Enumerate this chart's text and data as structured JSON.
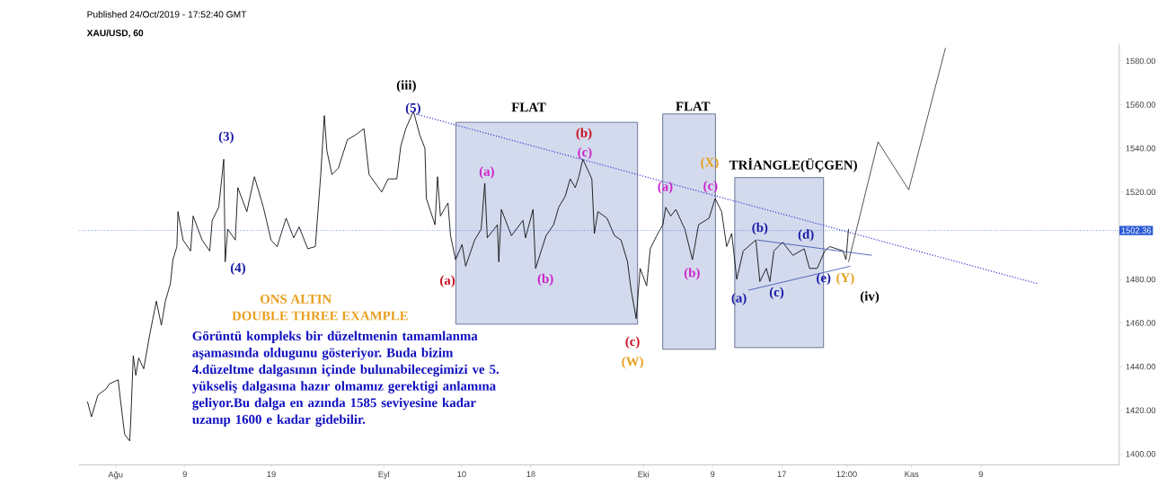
{
  "chart_data": {
    "type": "line",
    "title": "XAU/USD, 60",
    "subtitle": "Published 24/Oct/2019 - 17:52:40 GMT",
    "xlim": [
      "2019-07-27T18:00",
      "2019-11-25"
    ],
    "ylim": [
      1395,
      1588
    ],
    "xticks": [
      {
        "value": "2019-08-01",
        "label": "Ağu"
      },
      {
        "value": "2019-08-09",
        "label": "9"
      },
      {
        "value": "2019-08-19",
        "label": "19"
      },
      {
        "value": "2019-09-01",
        "label": "Eyl"
      },
      {
        "value": "2019-09-10",
        "label": "10"
      },
      {
        "value": "2019-09-18",
        "label": "18"
      },
      {
        "value": "2019-10-01",
        "label": "Eki"
      },
      {
        "value": "2019-10-09",
        "label": "9"
      },
      {
        "value": "2019-10-17",
        "label": "17"
      },
      {
        "value": "2019-10-24T12:00",
        "label": "12:00"
      },
      {
        "value": "2019-11-01",
        "label": "Kas"
      },
      {
        "value": "2019-11-09",
        "label": "9"
      }
    ],
    "yticks": [
      {
        "value": 1400,
        "label": "1400.00"
      },
      {
        "value": 1420,
        "label": "1420.00"
      },
      {
        "value": 1440,
        "label": "1440.00"
      },
      {
        "value": 1460,
        "label": "1460.00"
      },
      {
        "value": 1480,
        "label": "1480.00"
      },
      {
        "value": 1520,
        "label": "1520.00"
      },
      {
        "value": 1540,
        "label": "1540.00"
      },
      {
        "value": 1560,
        "label": "1560.00"
      },
      {
        "value": 1580,
        "label": "1580.00"
      }
    ],
    "series": [
      {
        "color": "#000000",
        "x": [
          "2019-07-28T18:00",
          "2019-07-29T05:00",
          "2019-07-29T23:00",
          "2019-07-30T23:00",
          "2019-07-31T06:00",
          "2019-08-01T07:00",
          "2019-08-01T14:00",
          "2019-08-02T01:00",
          "2019-08-02T15:00",
          "2019-08-02T18:00",
          "2019-08-03T01:00",
          "2019-08-03T08:00",
          "2019-08-03T16:00",
          "2019-08-04T06:00",
          "2019-08-04T23:00",
          "2019-08-05T17:00",
          "2019-08-06T07:00",
          "2019-08-06T18:00",
          "2019-08-07T08:00",
          "2019-08-07T15:00",
          "2019-08-08T02:00",
          "2019-08-08T05:00",
          "2019-08-08T19:00",
          "2019-08-09T16:00",
          "2019-08-09T23:00",
          "2019-08-11T00:00",
          "2019-08-11T21:00",
          "2019-08-12T04:00",
          "2019-08-12T22:00",
          "2019-08-13T12:00",
          "2019-08-13T16:00",
          "2019-08-13T23:00",
          "2019-08-14T20:00",
          "2019-08-15T03:00",
          "2019-08-16T04:00",
          "2019-08-17T01:00",
          "2019-08-18T02:00",
          "2019-08-18T23:00",
          "2019-08-19T16:00",
          "2019-08-20T17:00",
          "2019-08-21T14:00",
          "2019-08-22T05:00",
          "2019-08-23T05:00",
          "2019-08-24T02:00",
          "2019-08-24T17:00",
          "2019-08-25T03:00",
          "2019-08-25T10:00",
          "2019-08-26T00:00",
          "2019-08-26T18:00",
          "2019-08-27T19:00",
          "2019-08-28T16:00",
          "2019-08-29T17:00",
          "2019-08-30T07:00",
          "2019-08-31T18:00",
          "2019-09-01T12:00",
          "2019-09-02T12:00",
          "2019-09-02T23:00",
          "2019-09-03T13:00",
          "2019-09-04T10:00",
          "2019-09-05T04:00",
          "2019-09-05T18:00",
          "2019-09-05T22:00",
          "2019-09-06T22:00",
          "2019-09-07T05:00",
          "2019-09-07T13:00",
          "2019-09-08T10:00",
          "2019-09-08T17:00",
          "2019-09-09T07:00",
          "2019-09-10T01:00",
          "2019-09-10T11:00",
          "2019-09-11T12:00",
          "2019-09-12T06:00",
          "2019-09-12T16:00",
          "2019-09-12T23:00",
          "2019-09-14T03:00",
          "2019-09-14T07:00",
          "2019-09-14T14:00",
          "2019-09-15T18:00",
          "2019-09-17T02:00",
          "2019-09-17T09:00",
          "2019-09-18T06:00",
          "2019-09-18T13:00",
          "2019-09-19T18:00",
          "2019-09-20T15:00",
          "2019-09-21T05:00",
          "2019-09-21T23:00",
          "2019-09-22T13:00",
          "2019-09-23T03:00",
          "2019-09-23T13:00",
          "2019-09-24T00:00",
          "2019-09-24T14:00",
          "2019-09-25T01:00",
          "2019-09-25T08:00",
          "2019-09-25T18:00",
          "2019-09-26T19:00",
          "2019-09-27T16:00",
          "2019-09-28T10:00",
          "2019-09-29T04:00",
          "2019-09-29T14:00",
          "2019-09-30T04:00",
          "2019-09-30T15:00",
          "2019-10-01T09:00",
          "2019-10-01T19:00",
          "2019-10-02T13:00",
          "2019-10-03T06:00",
          "2019-10-03T14:00",
          "2019-10-04T04:00",
          "2019-10-04T18:00",
          "2019-10-05T19:00",
          "2019-10-06T16:00",
          "2019-10-07T09:00",
          "2019-10-08T14:00",
          "2019-10-09T07:00",
          "2019-10-10T01:00",
          "2019-10-10T15:00",
          "2019-10-11T05:00",
          "2019-10-11T19:00",
          "2019-10-12T13:00",
          "2019-10-13T03:00",
          "2019-10-14T00:00",
          "2019-10-14T11:00",
          "2019-10-15T05:00",
          "2019-10-15T15:00",
          "2019-10-16T02:00",
          "2019-10-17T02:00",
          "2019-10-18T07:00",
          "2019-10-19T14:00",
          "2019-10-20T05:00",
          "2019-10-21T02:00",
          "2019-10-21T23:00",
          "2019-10-22T13:00",
          "2019-10-24T02:00",
          "2019-10-24T10:00",
          "2019-10-24T17:00"
        ],
        "values": [
          1424,
          1417,
          1427,
          1430,
          1432,
          1434,
          1424,
          1409,
          1406,
          1415,
          1445,
          1436,
          1444,
          1439,
          1455,
          1470,
          1459,
          1470,
          1478,
          1489,
          1495,
          1511,
          1498,
          1493,
          1509,
          1498,
          1493,
          1507,
          1513,
          1535,
          1488,
          1503,
          1498,
          1522,
          1511,
          1527,
          1513,
          1498,
          1495,
          1508,
          1499,
          1504,
          1494,
          1495,
          1528,
          1555,
          1539,
          1528,
          1531,
          1544,
          1546,
          1549,
          1528,
          1520,
          1526,
          1526,
          1541,
          1549,
          1557,
          1546,
          1540,
          1517,
          1505,
          1527,
          1509,
          1515,
          1500,
          1489,
          1496,
          1486,
          1498,
          1503,
          1524,
          1499,
          1505,
          1488,
          1512,
          1500,
          1507,
          1499,
          1512,
          1485,
          1500,
          1505,
          1513,
          1518,
          1526,
          1522,
          1527,
          1535,
          1530,
          1526,
          1501,
          1511,
          1508,
          1500,
          1498,
          1488,
          1475,
          1462,
          1485,
          1477,
          1494,
          1500,
          1505,
          1513,
          1509,
          1512,
          1503,
          1489,
          1505,
          1508,
          1517,
          1511,
          1495,
          1501,
          1480,
          1493,
          1495,
          1498,
          1479,
          1485,
          1479,
          1493,
          1497,
          1491,
          1494,
          1485,
          1485,
          1493,
          1495,
          1493,
          1489,
          1503
        ]
      },
      {
        "color": "#3a3ad0",
        "line_style": "dotted",
        "x": [
          "2019-09-04T10:00",
          "2019-11-15T13:00"
        ],
        "values": [
          1556,
          1478
        ]
      },
      {
        "color": "#3a4fb0",
        "x": [
          "2019-10-14T04:00",
          "2019-10-27T10:00"
        ],
        "values": [
          1498,
          1491
        ]
      },
      {
        "color": "#3a4fb0",
        "x": [
          "2019-10-13T03:00",
          "2019-10-24T22:00"
        ],
        "values": [
          1475,
          1486
        ]
      },
      {
        "color": "#333333",
        "x": [
          "2019-10-24T17:00",
          "2019-10-28T03:00",
          "2019-10-31T16:00",
          "2019-11-04T22:00"
        ],
        "values": [
          1488,
          1543,
          1521,
          1586
        ]
      }
    ],
    "ref_lines": [
      {
        "axis": "y",
        "value": 1502.36,
        "label": "1502.36",
        "color": "#2a5ad6",
        "line_style": "dotted"
      }
    ],
    "annotations": [
      "(iii)",
      "(5)",
      "FLAT",
      "FLAT",
      "(3)",
      "(4)",
      "(a)",
      "(b)",
      "(c)",
      "(a)",
      "(b)",
      "(c)",
      "(W)",
      "(a)",
      "(X)",
      "(c)",
      "(b)",
      "TRİANGLE(ÜÇGEN)",
      "(b)",
      "(d)",
      "(a)",
      "(c)",
      "(e)",
      "(Y)",
      "(iv)",
      "ONS ALTIN",
      "DOUBLE THREE EXAMPLE",
      "Görüntü kompleks bir düzeltmenin tamamlanma aşamasında oldugunu gösteriyor. Buda bizim 4.düzeltme dalgasının içinde bulunabilecegimizi ve 5. yükseliş dalgasına hazır olmamız gerektigi anlamına geliyor.Bu dalga en azında 1585 seviyesine kadar uzanıp 1600 e kadar gidebilir."
    ]
  }
}
